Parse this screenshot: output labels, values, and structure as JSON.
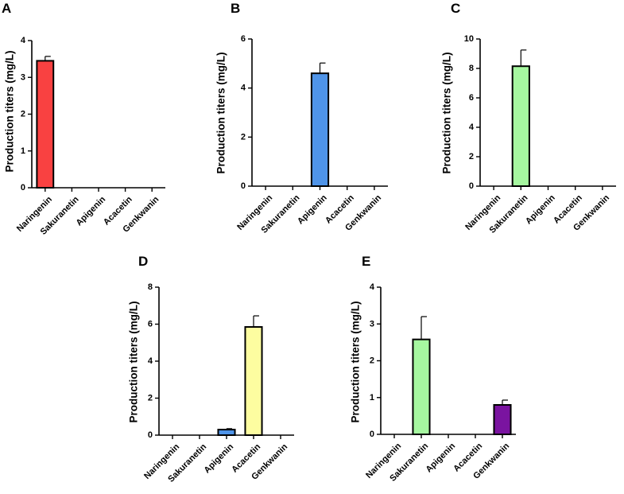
{
  "figure": {
    "panel_labels": [
      "A",
      "B",
      "C",
      "D",
      "E"
    ]
  },
  "chart_data": [
    {
      "panel": "A",
      "type": "bar",
      "categories": [
        "Naringenin",
        "Sakuranetin",
        "Apigenin",
        "Acacetin",
        "Genkwanin"
      ],
      "series": [
        {
          "name": "Production titers",
          "values": [
            3.45,
            0,
            0,
            0,
            0
          ],
          "errors": [
            0.12,
            0,
            0,
            0,
            0
          ],
          "colors": [
            "#f94141",
            "#f94141",
            "#f94141",
            "#f94141",
            "#f94141"
          ]
        }
      ],
      "ylabel": "Production titers (mg/L)",
      "xlabel": "",
      "ylim": [
        0,
        4
      ],
      "yticks": [
        0,
        1,
        2,
        3,
        4
      ]
    },
    {
      "panel": "B",
      "type": "bar",
      "categories": [
        "Naringenin",
        "Sakuranetin",
        "Apigenin",
        "Acacetin",
        "Genkwanin"
      ],
      "series": [
        {
          "name": "Production titers",
          "values": [
            0,
            0,
            4.6,
            0,
            0
          ],
          "errors": [
            0,
            0,
            0.42,
            0,
            0
          ],
          "colors": [
            "#4f94e8",
            "#4f94e8",
            "#4f94e8",
            "#4f94e8",
            "#4f94e8"
          ]
        }
      ],
      "ylabel": "Production titers (mg/L)",
      "xlabel": "",
      "ylim": [
        0,
        6
      ],
      "yticks": [
        0,
        2,
        4,
        6
      ]
    },
    {
      "panel": "C",
      "type": "bar",
      "categories": [
        "Naringenin",
        "Sakuranetin",
        "Apigenin",
        "Acacetin",
        "Genkwanin"
      ],
      "series": [
        {
          "name": "Production titers",
          "values": [
            0,
            8.15,
            0,
            0,
            0
          ],
          "errors": [
            0,
            1.1,
            0,
            0,
            0
          ],
          "colors": [
            "#a6f7a0",
            "#a6f7a0",
            "#a6f7a0",
            "#a6f7a0",
            "#a6f7a0"
          ]
        }
      ],
      "ylabel": "Production titers (mg/L)",
      "xlabel": "",
      "ylim": [
        0,
        10
      ],
      "yticks": [
        0,
        2,
        4,
        6,
        8,
        10
      ]
    },
    {
      "panel": "D",
      "type": "bar",
      "categories": [
        "Naringenin",
        "Sakuranetin",
        "Apigenin",
        "Acacetin",
        "Genkwanin"
      ],
      "series": [
        {
          "name": "Production titers",
          "values": [
            0,
            0,
            0.3,
            5.85,
            0
          ],
          "errors": [
            0,
            0,
            0.05,
            0.6,
            0
          ],
          "colors": [
            "#fdfda0",
            "#fdfda0",
            "#4f94e8",
            "#fdfda0",
            "#fdfda0"
          ]
        }
      ],
      "ylabel": "Production titers (mg/L)",
      "xlabel": "",
      "ylim": [
        0,
        8
      ],
      "yticks": [
        0,
        2,
        4,
        6,
        8
      ]
    },
    {
      "panel": "E",
      "type": "bar",
      "categories": [
        "Naringenin",
        "Sakuranetin",
        "Apigenin",
        "Acacetin",
        "Genkwanin"
      ],
      "series": [
        {
          "name": "Production titers",
          "values": [
            0,
            2.58,
            0,
            0,
            0.8
          ],
          "errors": [
            0,
            0.62,
            0,
            0,
            0.13
          ],
          "colors": [
            "#a6f7a0",
            "#a6f7a0",
            "#a6f7a0",
            "#a6f7a0",
            "#7a14a0"
          ]
        }
      ],
      "ylabel": "Production titers (mg/L)",
      "xlabel": "",
      "ylim": [
        0,
        4
      ],
      "yticks": [
        0,
        1,
        2,
        3,
        4
      ]
    }
  ]
}
